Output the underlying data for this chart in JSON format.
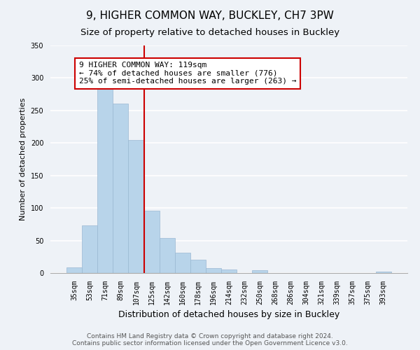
{
  "title": "9, HIGHER COMMON WAY, BUCKLEY, CH7 3PW",
  "subtitle": "Size of property relative to detached houses in Buckley",
  "xlabel": "Distribution of detached houses by size in Buckley",
  "ylabel": "Number of detached properties",
  "bar_labels": [
    "35sqm",
    "53sqm",
    "71sqm",
    "89sqm",
    "107sqm",
    "125sqm",
    "142sqm",
    "160sqm",
    "178sqm",
    "196sqm",
    "214sqm",
    "232sqm",
    "250sqm",
    "268sqm",
    "286sqm",
    "304sqm",
    "321sqm",
    "339sqm",
    "357sqm",
    "375sqm",
    "393sqm"
  ],
  "bar_values": [
    9,
    73,
    287,
    261,
    205,
    96,
    54,
    31,
    21,
    8,
    5,
    0,
    4,
    0,
    0,
    0,
    0,
    0,
    0,
    0,
    2
  ],
  "bar_color": "#b8d4ea",
  "bar_edge_color": "#9ab8d2",
  "vline_color": "#cc0000",
  "vline_pos": 4.5,
  "annotation_text": "9 HIGHER COMMON WAY: 119sqm\n← 74% of detached houses are smaller (776)\n25% of semi-detached houses are larger (263) →",
  "annotation_box_color": "white",
  "annotation_box_edge": "#cc0000",
  "ylim": [
    0,
    350
  ],
  "yticks": [
    0,
    50,
    100,
    150,
    200,
    250,
    300,
    350
  ],
  "footer_line1": "Contains HM Land Registry data © Crown copyright and database right 2024.",
  "footer_line2": "Contains public sector information licensed under the Open Government Licence v3.0.",
  "background_color": "#eef2f7",
  "grid_color": "white",
  "title_fontsize": 11,
  "subtitle_fontsize": 9.5,
  "xlabel_fontsize": 9,
  "ylabel_fontsize": 8,
  "tick_fontsize": 7,
  "footer_fontsize": 6.5,
  "annotation_fontsize": 8
}
